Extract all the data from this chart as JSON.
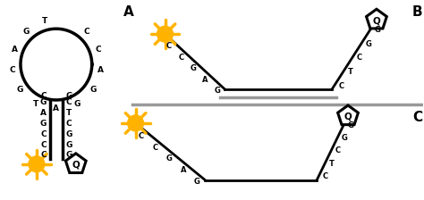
{
  "bg_color": "#ffffff",
  "label_A": "A",
  "label_B": "B",
  "label_C": "C",
  "sun_color": "#FFB300",
  "gray_line_color": "#999999",
  "loop_letters": [
    "T",
    "G",
    "A",
    "C",
    "G",
    "T",
    "A",
    "G",
    "G",
    "A",
    "C",
    "C"
  ],
  "stem_letters_left": [
    "G",
    "A",
    "G",
    "C",
    "C",
    "C"
  ],
  "stem_letters_right": [
    "C",
    "T",
    "C",
    "G",
    "G",
    "G"
  ],
  "stem_top_letters_left": "C",
  "stem_top_letters_right": "G",
  "seq_left": [
    "C",
    "C",
    "G",
    "A",
    "G"
  ],
  "seq_right": [
    "C",
    "T",
    "C",
    "G",
    "G"
  ]
}
